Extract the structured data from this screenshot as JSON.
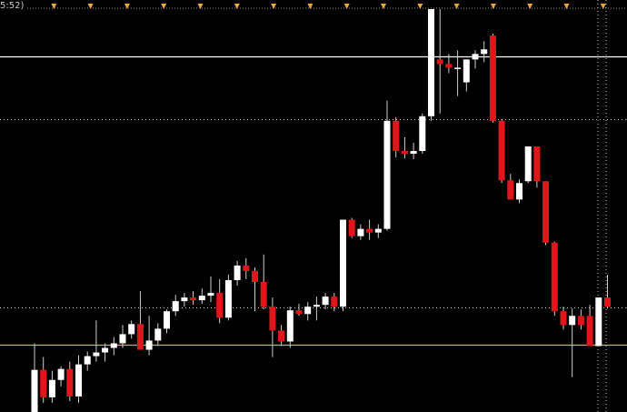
{
  "header": {
    "time_fragment": "5:52)"
  },
  "colors": {
    "background": "#000000",
    "bull_candle": "#ffffff",
    "bear_candle": "#e0161a",
    "wick": "#cccccc",
    "upper_level_line": "#ffffff",
    "support_line": "#e6a640",
    "dotted_level": "#bfbfbf",
    "session_marker": "#e6a640"
  },
  "chart_data": {
    "type": "candlestick",
    "title": "",
    "xlabel": "",
    "ylabel": "",
    "price_axis": "hidden",
    "ylim": [
      0,
      435
    ],
    "grid": false,
    "legend": "none",
    "horizontal_levels": [
      {
        "value": 388,
        "style": "solid",
        "color": "#ffffff"
      },
      {
        "value": 320,
        "style": "dotted",
        "color": "#bfbfbf"
      },
      {
        "value": 114,
        "style": "dotted",
        "color": "#bfbfbf"
      },
      {
        "value": 73,
        "style": "solid",
        "color": "#e6a640"
      }
    ],
    "session_markers": 17,
    "candles": [
      {
        "o": 0,
        "h": 75,
        "l": 0,
        "c": 46
      },
      {
        "o": 46,
        "h": 60,
        "l": 10,
        "c": 16
      },
      {
        "o": 16,
        "h": 45,
        "l": 10,
        "c": 35
      },
      {
        "o": 35,
        "h": 50,
        "l": 28,
        "c": 47
      },
      {
        "o": 47,
        "h": 55,
        "l": 12,
        "c": 17
      },
      {
        "o": 17,
        "h": 62,
        "l": 10,
        "c": 52
      },
      {
        "o": 52,
        "h": 66,
        "l": 45,
        "c": 61
      },
      {
        "o": 61,
        "h": 100,
        "l": 55,
        "c": 65
      },
      {
        "o": 65,
        "h": 75,
        "l": 55,
        "c": 70
      },
      {
        "o": 70,
        "h": 82,
        "l": 62,
        "c": 75
      },
      {
        "o": 75,
        "h": 95,
        "l": 70,
        "c": 85
      },
      {
        "o": 85,
        "h": 100,
        "l": 80,
        "c": 96
      },
      {
        "o": 96,
        "h": 132,
        "l": 68,
        "c": 68
      },
      {
        "o": 68,
        "h": 105,
        "l": 62,
        "c": 78
      },
      {
        "o": 78,
        "h": 97,
        "l": 72,
        "c": 91
      },
      {
        "o": 91,
        "h": 112,
        "l": 86,
        "c": 110
      },
      {
        "o": 110,
        "h": 128,
        "l": 105,
        "c": 121
      },
      {
        "o": 121,
        "h": 130,
        "l": 115,
        "c": 125
      },
      {
        "o": 125,
        "h": 132,
        "l": 117,
        "c": 122
      },
      {
        "o": 122,
        "h": 135,
        "l": 118,
        "c": 127
      },
      {
        "o": 127,
        "h": 148,
        "l": 120,
        "c": 130
      },
      {
        "o": 130,
        "h": 145,
        "l": 97,
        "c": 103
      },
      {
        "o": 103,
        "h": 150,
        "l": 100,
        "c": 144
      },
      {
        "o": 144,
        "h": 165,
        "l": 138,
        "c": 160
      },
      {
        "o": 160,
        "h": 168,
        "l": 145,
        "c": 154
      },
      {
        "o": 154,
        "h": 158,
        "l": 110,
        "c": 142
      },
      {
        "o": 142,
        "h": 172,
        "l": 112,
        "c": 115
      },
      {
        "o": 115,
        "h": 125,
        "l": 60,
        "c": 89
      },
      {
        "o": 89,
        "h": 95,
        "l": 72,
        "c": 77
      },
      {
        "o": 77,
        "h": 115,
        "l": 70,
        "c": 111
      },
      {
        "o": 111,
        "h": 118,
        "l": 105,
        "c": 107
      },
      {
        "o": 107,
        "h": 120,
        "l": 100,
        "c": 115
      },
      {
        "o": 115,
        "h": 126,
        "l": 100,
        "c": 117
      },
      {
        "o": 117,
        "h": 130,
        "l": 112,
        "c": 126
      },
      {
        "o": 126,
        "h": 130,
        "l": 110,
        "c": 115
      },
      {
        "o": 115,
        "h": 210,
        "l": 110,
        "c": 210
      },
      {
        "o": 210,
        "h": 212,
        "l": 190,
        "c": 192
      },
      {
        "o": 192,
        "h": 205,
        "l": 188,
        "c": 200
      },
      {
        "o": 200,
        "h": 210,
        "l": 188,
        "c": 196
      },
      {
        "o": 196,
        "h": 205,
        "l": 190,
        "c": 200
      },
      {
        "o": 200,
        "h": 340,
        "l": 198,
        "c": 318
      },
      {
        "o": 318,
        "h": 322,
        "l": 278,
        "c": 285
      },
      {
        "o": 285,
        "h": 300,
        "l": 277,
        "c": 282
      },
      {
        "o": 282,
        "h": 294,
        "l": 276,
        "c": 285
      },
      {
        "o": 285,
        "h": 326,
        "l": 282,
        "c": 323
      },
      {
        "o": 323,
        "h": 440,
        "l": 318,
        "c": 440
      },
      {
        "o": 385,
        "h": 440,
        "l": 326,
        "c": 380
      },
      {
        "o": 380,
        "h": 391,
        "l": 370,
        "c": 376
      },
      {
        "o": 376,
        "h": 395,
        "l": 345,
        "c": 376
      },
      {
        "o": 360,
        "h": 385,
        "l": 350,
        "c": 385
      },
      {
        "o": 385,
        "h": 395,
        "l": 375,
        "c": 391
      },
      {
        "o": 391,
        "h": 405,
        "l": 382,
        "c": 396
      },
      {
        "o": 411,
        "h": 413,
        "l": 316,
        "c": 318
      },
      {
        "o": 318,
        "h": 320,
        "l": 250,
        "c": 253
      },
      {
        "o": 253,
        "h": 260,
        "l": 232,
        "c": 232
      },
      {
        "o": 232,
        "h": 254,
        "l": 228,
        "c": 250
      },
      {
        "o": 252,
        "h": 290,
        "l": 250,
        "c": 290
      },
      {
        "o": 290,
        "h": 290,
        "l": 245,
        "c": 252
      },
      {
        "o": 252,
        "h": 252,
        "l": 182,
        "c": 185
      },
      {
        "o": 185,
        "h": 186,
        "l": 105,
        "c": 110
      },
      {
        "o": 110,
        "h": 115,
        "l": 90,
        "c": 95
      },
      {
        "o": 95,
        "h": 113,
        "l": 38,
        "c": 105
      },
      {
        "o": 105,
        "h": 112,
        "l": 90,
        "c": 95
      },
      {
        "o": 105,
        "h": 117,
        "l": 72,
        "c": 72
      },
      {
        "o": 72,
        "h": 125,
        "l": 72,
        "c": 125
      },
      {
        "o": 125,
        "h": 150,
        "l": 113,
        "c": 115
      }
    ]
  }
}
